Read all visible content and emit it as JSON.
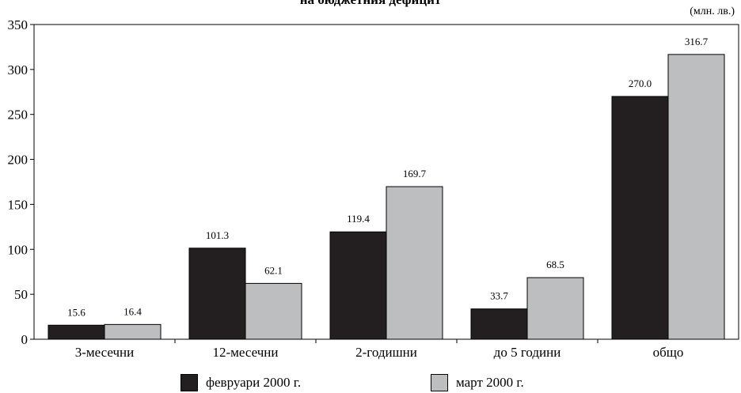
{
  "chart_data": {
    "type": "bar",
    "title": "на бюджетния дефицит",
    "unit_label": "(млн. лв.)",
    "categories": [
      "3-месечни",
      "12-месечни",
      "2-годишни",
      "до 5 години",
      "общо"
    ],
    "series": [
      {
        "name": "февруари 2000 г.",
        "values": [
          15.6,
          101.3,
          119.4,
          33.7,
          270.0
        ],
        "labels": [
          "15.6",
          "101.3",
          "119.4",
          "33.7",
          "270.0"
        ],
        "color": "#231f20"
      },
      {
        "name": "март 2000 г.",
        "values": [
          16.4,
          62.1,
          169.7,
          68.5,
          316.7
        ],
        "labels": [
          "16.4",
          "62.1",
          "169.7",
          "68.5",
          "316.7"
        ],
        "color": "#bcbec0"
      }
    ],
    "yticks": [
      0,
      50,
      100,
      150,
      200,
      250,
      300,
      350
    ],
    "ylim": [
      0,
      350
    ],
    "grid": false,
    "legend_position": "bottom"
  }
}
